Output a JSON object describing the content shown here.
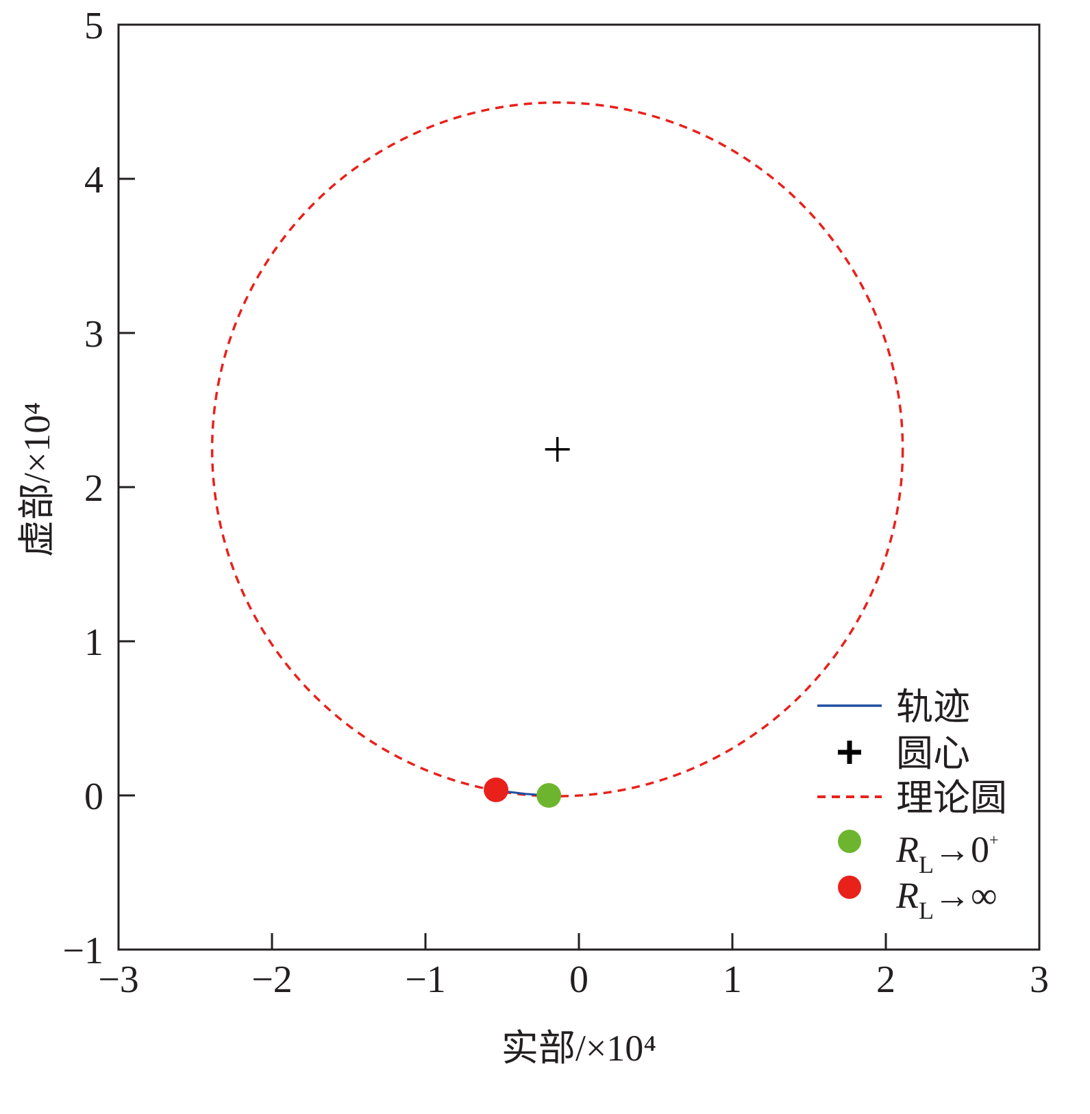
{
  "chart_data": {
    "type": "scatter",
    "title": "",
    "xlabel": "实部/×10⁴",
    "ylabel": "虚部/×10⁴",
    "xlim": [
      -3,
      3
    ],
    "ylim": [
      -1,
      5
    ],
    "xticks": [
      "−3",
      "−2",
      "−1",
      "0",
      "1",
      "2",
      "3"
    ],
    "xtick_values": [
      -3,
      -2,
      -1,
      0,
      1,
      2,
      3
    ],
    "yticks": [
      "−1",
      "0",
      "1",
      "2",
      "3",
      "4",
      "5"
    ],
    "ytick_values": [
      -1,
      0,
      1,
      2,
      3,
      4,
      5
    ],
    "grid": false,
    "legend_position": "bottom-right",
    "series": [
      {
        "name": "轨迹",
        "kind": "line",
        "color": "#1f4fa0",
        "points": [
          [
            -0.54,
            0.036
          ],
          [
            -0.45,
            0.022
          ],
          [
            -0.35,
            0.01
          ],
          [
            -0.25,
            0.003
          ],
          [
            -0.196,
            0.0
          ]
        ]
      },
      {
        "name": "圆心",
        "kind": "marker-plus",
        "color": "#000000",
        "points": [
          [
            -0.14,
            2.245
          ]
        ]
      },
      {
        "name": "理论圆",
        "kind": "dashed-circle",
        "color": "#e8211b",
        "center": [
          -0.14,
          2.245
        ],
        "radius": 2.25
      },
      {
        "name": "R_L→0⁺",
        "kind": "point",
        "color": "#6db52e",
        "points": [
          [
            -0.196,
            0.0
          ]
        ]
      },
      {
        "name": "R_L→∞",
        "kind": "point",
        "color": "#e8211b",
        "points": [
          [
            -0.54,
            0.036
          ]
        ]
      }
    ],
    "legend": [
      {
        "label": "轨迹"
      },
      {
        "label": "圆心"
      },
      {
        "label": "理论圆"
      },
      {
        "label_main": "R",
        "label_sub": "L",
        "label_rest": "→0",
        "label_sup": "+"
      },
      {
        "label_main": "R",
        "label_sub": "L",
        "label_rest": "→∞"
      }
    ]
  }
}
